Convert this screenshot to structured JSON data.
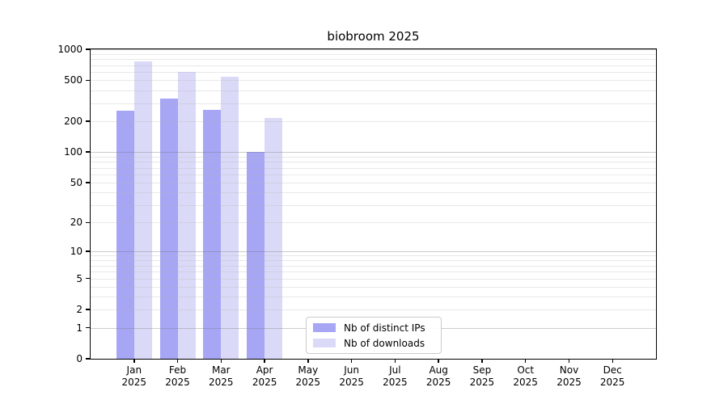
{
  "title": "biobroom 2025",
  "chart_data": {
    "type": "bar",
    "title": "biobroom 2025",
    "categories": [
      "Jan",
      "Feb",
      "Mar",
      "Apr",
      "May",
      "Jun",
      "Jul",
      "Aug",
      "Sep",
      "Oct",
      "Nov",
      "Dec"
    ],
    "category_year": "2025",
    "series": [
      {
        "name": "Nb of distinct IPs",
        "color": "#a6a6f5",
        "values": [
          255,
          330,
          260,
          100,
          null,
          null,
          null,
          null,
          null,
          null,
          null,
          null
        ]
      },
      {
        "name": "Nb of downloads",
        "color": "#dadaf8",
        "values": [
          770,
          600,
          540,
          215,
          null,
          null,
          null,
          null,
          null,
          null,
          null,
          null
        ]
      }
    ],
    "yticks": [
      0,
      1,
      2,
      5,
      10,
      20,
      50,
      100,
      200,
      500,
      1000
    ],
    "scale": "log1p",
    "ylim": [
      0,
      1000
    ],
    "xlabel": "",
    "ylabel": "",
    "grid": "on",
    "grid_over_bars": true,
    "legend_position": "inside-bottom-center",
    "axis_color": "#000000",
    "background_color": "#ffffff"
  }
}
